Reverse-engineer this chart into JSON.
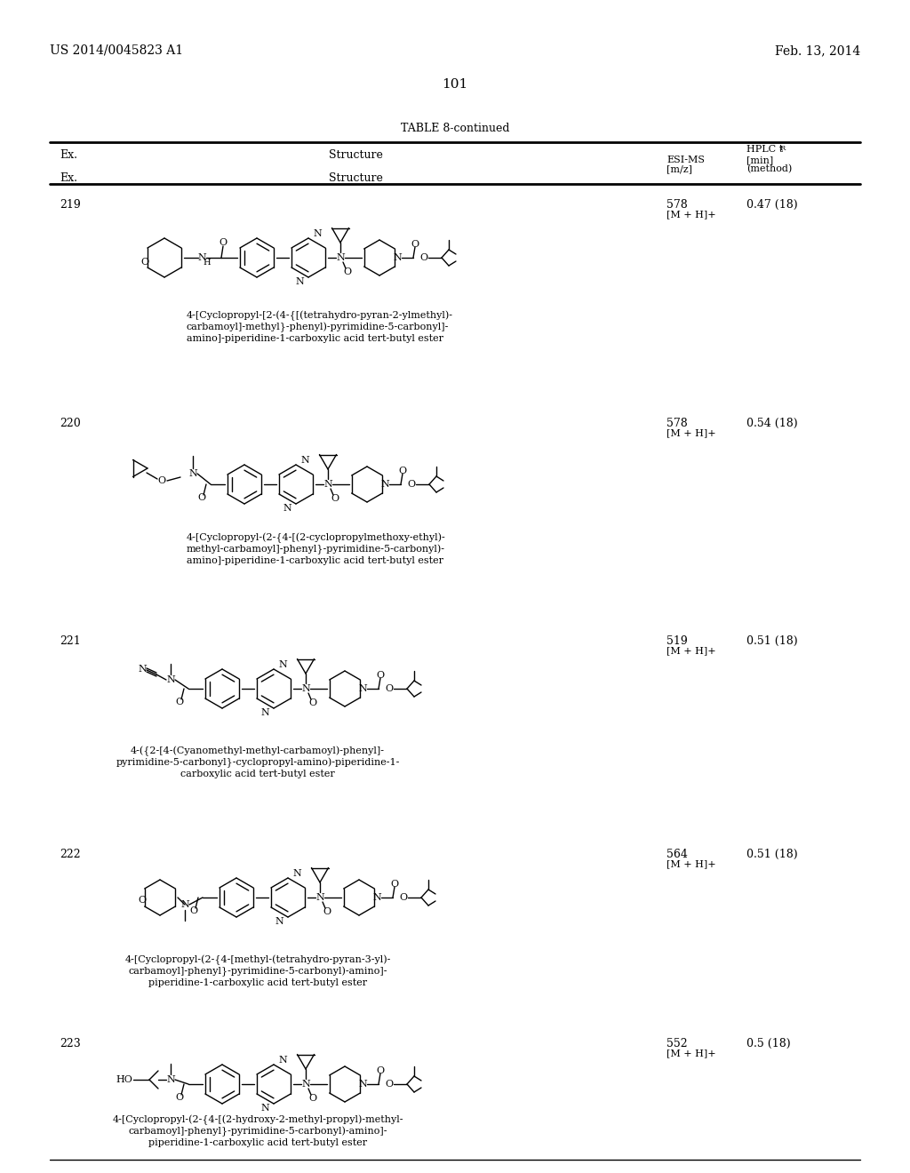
{
  "page_number": "101",
  "patent_number": "US 2014/0045823 A1",
  "patent_date": "Feb. 13, 2014",
  "table_title": "TABLE 8-continued",
  "header_ex": "Ex.",
  "header_structure": "Structure",
  "header_esi": "ESI-MS",
  "header_mz": "[m/z]",
  "header_hplc": "HPLC t",
  "header_min": "[min]",
  "header_method": "(method)",
  "rows": [
    {
      "ex": "219",
      "esi_ms_val": "578",
      "esi_ms_ion": "[M + H]+",
      "hplc": "0.47 (18)",
      "name_lines": [
        "4-[Cyclopropyl-[2-(4-{[(tetrahydro-pyran-2-ylmethyl)-",
        "carbamoyl]-methyl}-phenyl)-pyrimidine-5-carbonyl]-",
        "amino]-piperidine-1-carboxylic acid tert-butyl ester"
      ]
    },
    {
      "ex": "220",
      "esi_ms_val": "578",
      "esi_ms_ion": "[M + H]+",
      "hplc": "0.54 (18)",
      "name_lines": [
        "4-[Cyclopropyl-(2-{4-[(2-cyclopropylmethoxy-ethyl)-",
        "methyl-carbamoyl]-phenyl}-pyrimidine-5-carbonyl)-",
        "amino]-piperidine-1-carboxylic acid tert-butyl ester"
      ]
    },
    {
      "ex": "221",
      "esi_ms_val": "519",
      "esi_ms_ion": "[M + H]+",
      "hplc": "0.51 (18)",
      "name_lines": [
        "4-({2-[4-(Cyanomethyl-methyl-carbamoyl)-phenyl]-",
        "pyrimidine-5-carbonyl}-cyclopropyl-amino)-piperidine-1-",
        "carboxylic acid tert-butyl ester"
      ]
    },
    {
      "ex": "222",
      "esi_ms_val": "564",
      "esi_ms_ion": "[M + H]+",
      "hplc": "0.51 (18)",
      "name_lines": [
        "4-[Cyclopropyl-(2-{4-[methyl-(tetrahydro-pyran-3-yl)-",
        "carbamoyl]-phenyl}-pyrimidine-5-carbonyl)-amino]-",
        "piperidine-1-carboxylic acid tert-butyl ester"
      ]
    },
    {
      "ex": "223",
      "esi_ms_val": "552",
      "esi_ms_ion": "[M + H]+",
      "hplc": "0.5 (18)",
      "name_lines": [
        "4-[Cyclopropyl-(2-{4-[(2-hydroxy-2-methyl-propyl)-methyl-",
        "carbamoyl]-phenyl}-pyrimidine-5-carbonyl)-amino]-",
        "piperidine-1-carboxylic acid tert-butyl ester"
      ]
    }
  ]
}
